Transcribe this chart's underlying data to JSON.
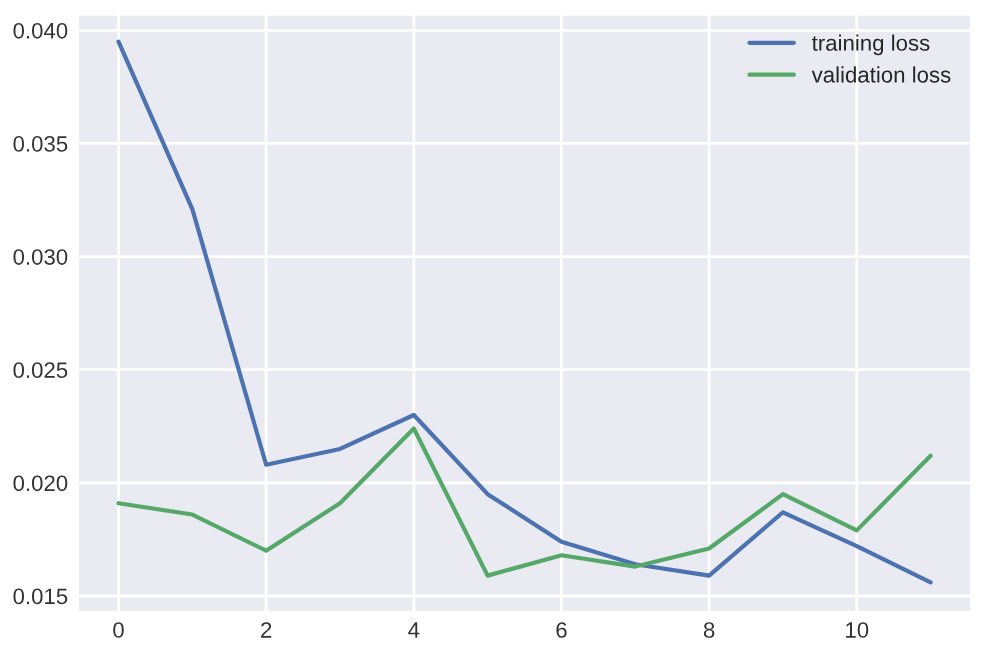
{
  "chart_data": {
    "type": "line",
    "x": [
      0,
      1,
      2,
      3,
      4,
      5,
      6,
      7,
      8,
      9,
      10,
      11
    ],
    "series": [
      {
        "name": "training loss",
        "color": "#4c72b0",
        "values": [
          0.0395,
          0.0321,
          0.0208,
          0.0215,
          0.023,
          0.0195,
          0.0174,
          0.0164,
          0.0159,
          0.0187,
          0.0172,
          0.0156
        ]
      },
      {
        "name": "validation loss",
        "color": "#55a868",
        "values": [
          0.0191,
          0.0186,
          0.017,
          0.0191,
          0.0224,
          0.0159,
          0.0168,
          0.0163,
          0.0171,
          0.0195,
          0.0179,
          0.0212
        ]
      }
    ],
    "xlim": [
      -0.55,
      11.55
    ],
    "xticks": [
      0,
      2,
      4,
      6,
      8,
      10
    ],
    "ylim": [
      0.0143,
      0.0407
    ],
    "yticks": [
      {
        "value": 0.015,
        "label": "0.015"
      },
      {
        "value": 0.02,
        "label": "0.020"
      },
      {
        "value": 0.025,
        "label": "0.025"
      },
      {
        "value": 0.03,
        "label": "0.030"
      },
      {
        "value": 0.035,
        "label": "0.035"
      },
      {
        "value": 0.04,
        "label": "0.040"
      }
    ],
    "grid": true,
    "legend": "top right",
    "marker": "none",
    "line_style": "solid"
  }
}
